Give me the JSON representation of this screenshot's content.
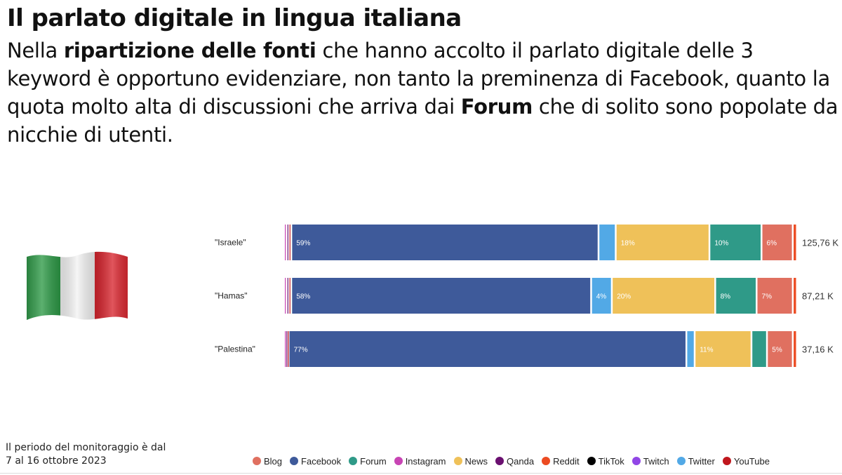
{
  "header": {
    "title": "Il parlato digitale in lingua italiana",
    "subtitle_parts": {
      "p1": "Nella ",
      "b1": "ripartizione delle fonti",
      "p2": " che hanno accolto il parlato digitale delle 3 keyword è opportuno evidenziare, non tanto la preminenza di Facebook, quanto la quota molto alta di discussioni che arriva dai ",
      "b2": "Forum",
      "p3": " che di solito sono popolate da nicchie di utenti."
    }
  },
  "flag": {
    "icon": "italian-flag-icon",
    "colors": [
      "#2e9a47",
      "#f3f3f3",
      "#d8262f"
    ]
  },
  "footnote": {
    "line1": "Il periodo del monitoraggio è dal",
    "line2": "7 al 16 ottobre 2023"
  },
  "chart_data": {
    "type": "bar",
    "orientation": "horizontal",
    "stacked": true,
    "normalized": true,
    "title": "",
    "xlabel": "",
    "ylabel": "",
    "xlim": [
      0,
      100
    ],
    "label_threshold": 4,
    "categories": [
      "\"Israele\"",
      "\"Hamas\"",
      "\"Palestina\""
    ],
    "totals": [
      "125,76 K",
      "87,21 K",
      "37,16 K"
    ],
    "series": [
      {
        "name": "Instagram",
        "color": "#c844b4",
        "values": [
          0.5,
          0.5,
          0.3
        ]
      },
      {
        "name": "Qanda",
        "color": "#6a1070",
        "values": [
          0.4,
          0.4,
          0.3
        ]
      },
      {
        "name": "YouTube",
        "color": "#c0171d",
        "values": [
          0.5,
          0.5,
          0.3
        ]
      },
      {
        "name": "Facebook",
        "color": "#3e5a9a",
        "values": [
          59,
          58,
          77
        ]
      },
      {
        "name": "Twitter",
        "color": "#52a9e6",
        "values": [
          3.3,
          4,
          1.6
        ]
      },
      {
        "name": "News",
        "color": "#efc159",
        "values": [
          18,
          20,
          11
        ]
      },
      {
        "name": "Forum",
        "color": "#2f9a88",
        "values": [
          10,
          8,
          3
        ]
      },
      {
        "name": "Blog",
        "color": "#e07060",
        "values": [
          6,
          7,
          5
        ]
      },
      {
        "name": "Reddit",
        "color": "#ec4b22",
        "values": [
          0.8,
          0.8,
          0.8
        ]
      }
    ],
    "legend": {
      "position": "bottom",
      "items": [
        {
          "name": "Blog",
          "color": "#e07060"
        },
        {
          "name": "Facebook",
          "color": "#3e5a9a"
        },
        {
          "name": "Forum",
          "color": "#2f9a88"
        },
        {
          "name": "Instagram",
          "color": "#c844b4"
        },
        {
          "name": "News",
          "color": "#efc159"
        },
        {
          "name": "Qanda",
          "color": "#6a1070"
        },
        {
          "name": "Reddit",
          "color": "#ec4b22"
        },
        {
          "name": "TikTok",
          "color": "#000000"
        },
        {
          "name": "Twitch",
          "color": "#9146e6"
        },
        {
          "name": "Twitter",
          "color": "#52a9e6"
        },
        {
          "name": "YouTube",
          "color": "#c0171d"
        }
      ]
    }
  }
}
